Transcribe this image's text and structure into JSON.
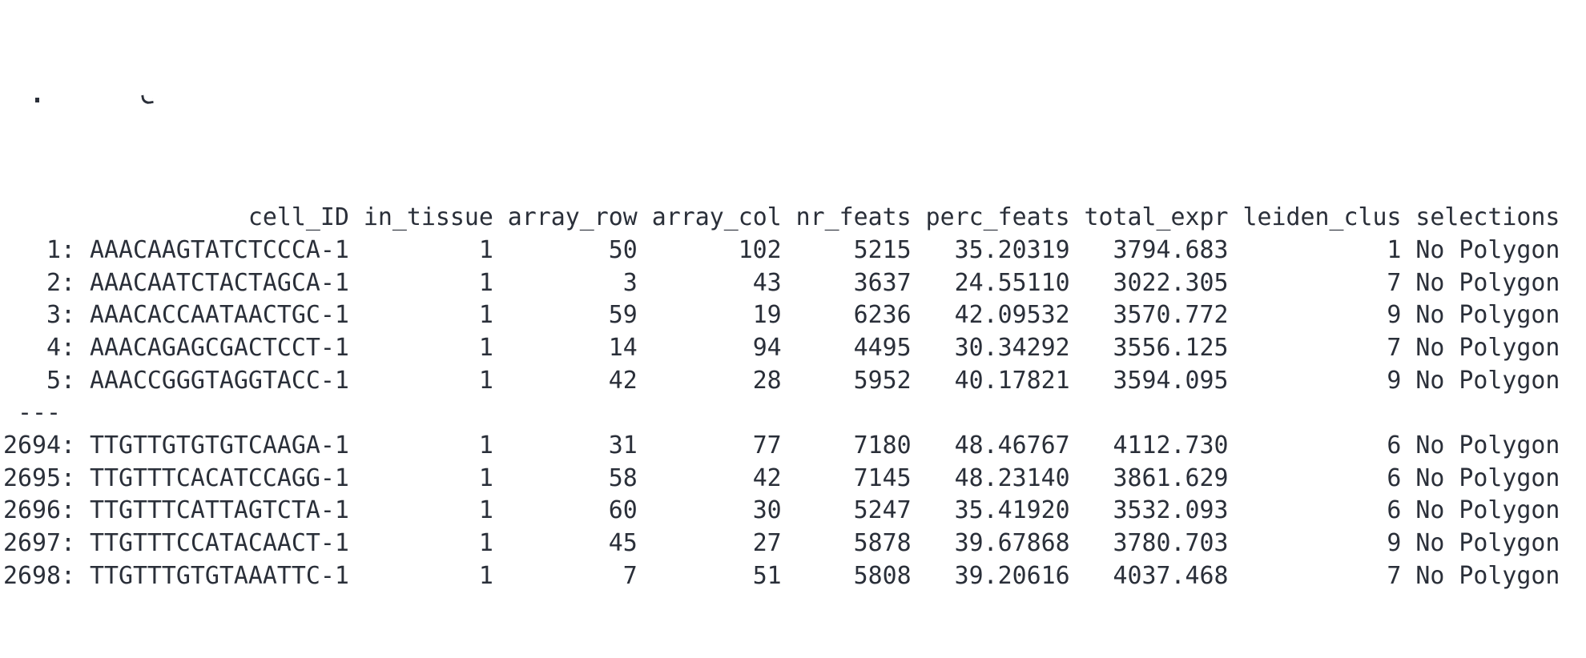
{
  "colors": {
    "text": "#2a2f39",
    "background": "#ffffff"
  },
  "top_clipped_line": {
    "legible": false,
    "note": "only two glyph descender fragments visible at top edge"
  },
  "table": {
    "columns": [
      {
        "key": "row_label",
        "label": "",
        "width": 5
      },
      {
        "key": "cell_ID",
        "label": "cell_ID",
        "width": 18
      },
      {
        "key": "in_tissue",
        "label": "in_tissue",
        "width": 9
      },
      {
        "key": "array_row",
        "label": "array_row",
        "width": 9
      },
      {
        "key": "array_col",
        "label": "array_col",
        "width": 9
      },
      {
        "key": "nr_feats",
        "label": "nr_feats",
        "width": 8
      },
      {
        "key": "perc_feats",
        "label": "perc_feats",
        "width": 10
      },
      {
        "key": "total_expr",
        "label": "total_expr",
        "width": 10
      },
      {
        "key": "leiden_clus",
        "label": "leiden_clus",
        "width": 11
      },
      {
        "key": "selections",
        "label": "selections",
        "width": 10
      }
    ],
    "rows": [
      [
        "1:",
        "AAACAAGTATCTCCCA-1",
        "1",
        "50",
        "102",
        "5215",
        "35.20319",
        "3794.683",
        "1",
        "No Polygon"
      ],
      [
        "2:",
        "AAACAATCTACTAGCA-1",
        "1",
        "3",
        "43",
        "3637",
        "24.55110",
        "3022.305",
        "7",
        "No Polygon"
      ],
      [
        "3:",
        "AAACACCAATAACTGC-1",
        "1",
        "59",
        "19",
        "6236",
        "42.09532",
        "3570.772",
        "9",
        "No Polygon"
      ],
      [
        "4:",
        "AAACAGAGCGACTCCT-1",
        "1",
        "14",
        "94",
        "4495",
        "30.34292",
        "3556.125",
        "7",
        "No Polygon"
      ],
      [
        "5:",
        "AAACCGGGTAGGTACC-1",
        "1",
        "42",
        "28",
        "5952",
        "40.17821",
        "3594.095",
        "9",
        "No Polygon"
      ],
      {
        "separator": "---"
      },
      [
        "2694:",
        "TTGTTGTGTGTCAAGA-1",
        "1",
        "31",
        "77",
        "7180",
        "48.46767",
        "4112.730",
        "6",
        "No Polygon"
      ],
      [
        "2695:",
        "TTGTTTCACATCCAGG-1",
        "1",
        "58",
        "42",
        "7145",
        "48.23140",
        "3861.629",
        "6",
        "No Polygon"
      ],
      [
        "2696:",
        "TTGTTTCATTAGTCTA-1",
        "1",
        "60",
        "30",
        "5247",
        "35.41920",
        "3532.093",
        "6",
        "No Polygon"
      ],
      [
        "2697:",
        "TTGTTTCCATACAACT-1",
        "1",
        "45",
        "27",
        "5878",
        "39.67868",
        "3780.703",
        "9",
        "No Polygon"
      ],
      [
        "2698:",
        "TTGTTTGTGTAAATTC-1",
        "1",
        "7",
        "51",
        "5808",
        "39.20616",
        "4037.468",
        "7",
        "No Polygon"
      ]
    ]
  }
}
